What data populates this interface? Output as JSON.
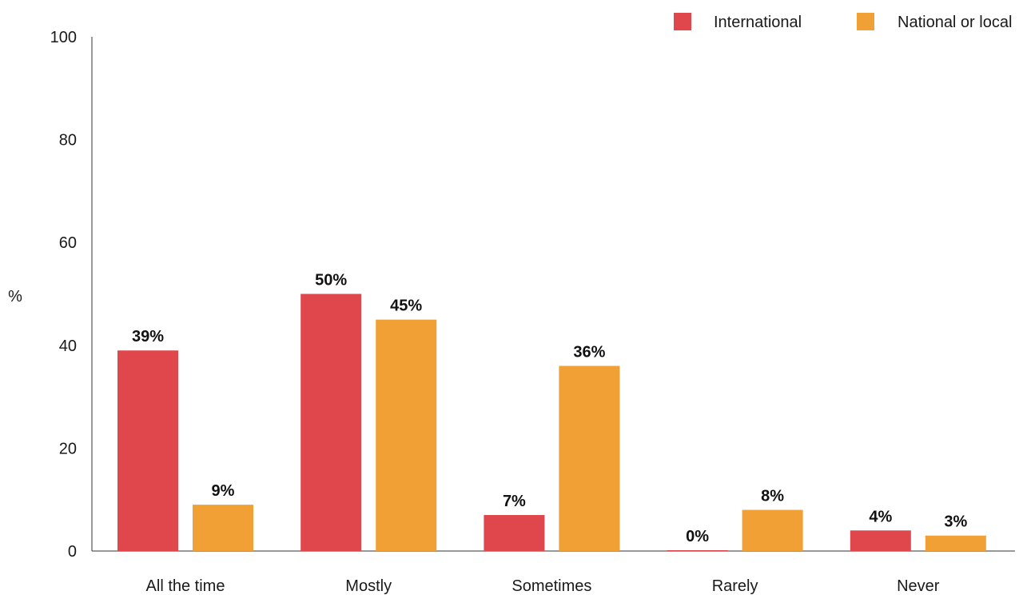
{
  "chart_data": {
    "type": "bar",
    "ylabel": "%",
    "ylim": [
      0,
      100
    ],
    "yticks": [
      "0",
      "20",
      "40",
      "60",
      "80",
      "100"
    ],
    "categories": [
      "All the time",
      "Mostly",
      "Sometimes",
      "Rarely",
      "Never"
    ],
    "legend_position": "top-right",
    "grid": false,
    "series": [
      {
        "name": "International",
        "color": "#e0474c",
        "values": [
          39,
          50,
          7,
          0,
          4
        ],
        "labels": [
          "39%",
          "50%",
          "7%",
          "0%",
          "4%"
        ]
      },
      {
        "name": "National or local",
        "color": "#f0a035",
        "values": [
          9,
          45,
          36,
          8,
          3
        ],
        "labels": [
          "9%",
          "45%",
          "36%",
          "8%",
          "3%"
        ]
      }
    ]
  }
}
